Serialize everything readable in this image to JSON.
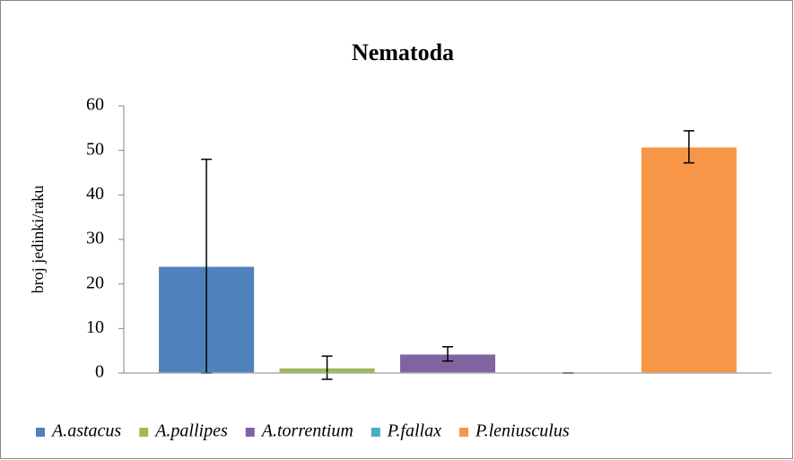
{
  "chart_data": {
    "type": "bar",
    "title": "Nematoda",
    "y_label": "broj jedinki/raku",
    "categories": [
      null
    ],
    "series": [
      {
        "name": "A.astacus",
        "color": "#4f81bd",
        "values": [
          24
        ],
        "errors": [
          24
        ]
      },
      {
        "name": "A.pallipes",
        "color": "#9bbb59",
        "values": [
          1.2
        ],
        "errors": [
          2.6
        ]
      },
      {
        "name": "A.torrentium",
        "color": "#8064a2",
        "values": [
          4.3
        ],
        "errors": [
          1.6
        ]
      },
      {
        "name": "P.fallax",
        "color": "#4bacc6",
        "values": [
          0
        ],
        "errors": [
          0
        ]
      },
      {
        "name": "P.leniusculus",
        "color": "#f79646",
        "values": [
          50.8
        ],
        "errors": [
          3.6
        ]
      }
    ],
    "ylim": [
      0,
      60
    ],
    "yticks": [
      0,
      10,
      20,
      30,
      40,
      50,
      60
    ],
    "grid": false,
    "legend": "bottom"
  }
}
